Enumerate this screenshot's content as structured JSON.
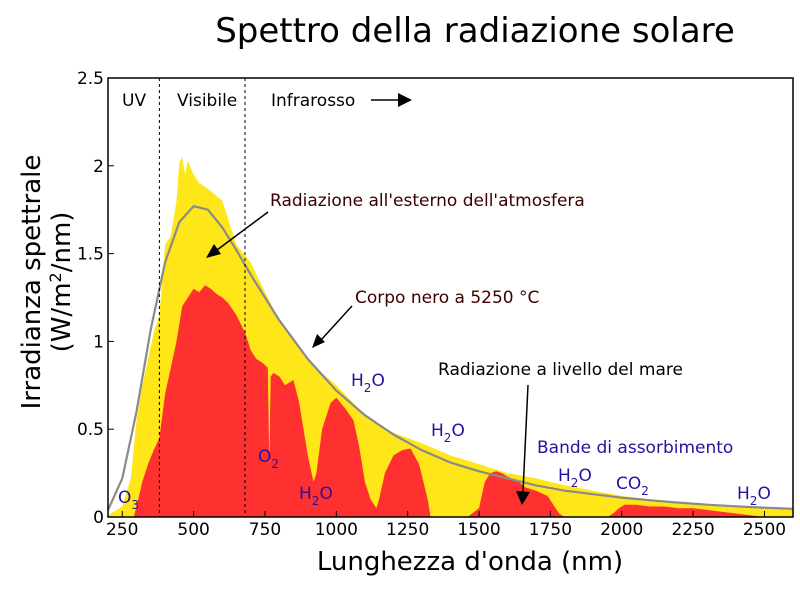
{
  "chart_data": {
    "type": "area",
    "title": "Spettro della radiazione solare",
    "xlabel": "Lunghezza d'onda (nm)",
    "ylabel_line1": "Irradianza spettrale",
    "ylabel_line2_prefix": "(W/m",
    "ylabel_line2_sup": "2",
    "ylabel_line2_suffix": "/nm)",
    "xlim": [
      200,
      2600
    ],
    "ylim": [
      0,
      2.5
    ],
    "x_ticks": [
      250,
      500,
      750,
      1000,
      1250,
      1500,
      1750,
      2000,
      2250,
      2500
    ],
    "y_ticks": [
      0,
      0.5,
      1,
      1.5,
      2,
      2.5
    ],
    "y_tick_labels": [
      "0",
      "0.5",
      "1",
      "1.5",
      "2",
      "2.5"
    ],
    "regions": {
      "uv_label": "UV",
      "visible_label": "Visibile",
      "infrared_label": "Infrarosso",
      "boundaries_nm": [
        380,
        680
      ]
    },
    "annotations": {
      "outside_atmosphere": "Radiazione all'esterno dell'atmosfera",
      "blackbody": "Corpo nero a 5250 °C",
      "sea_level": "Radiazione a livello del mare",
      "absorption_bands": "Bande di assorbimento"
    },
    "colors": {
      "outside_atmosphere": "#ffe619",
      "sea_level": "#ff3030",
      "blackbody": "#8a8a8a",
      "absorption_label": "#2b0fa0"
    },
    "absorption_bands": [
      {
        "main": "O",
        "sub": "3",
        "tail": ""
      },
      {
        "main": "O",
        "sub": "2",
        "tail": ""
      },
      {
        "main": "H",
        "sub": "2",
        "tail": "O"
      },
      {
        "main": "H",
        "sub": "2",
        "tail": "O"
      },
      {
        "main": "H",
        "sub": "2",
        "tail": "O"
      },
      {
        "main": "H",
        "sub": "2",
        "tail": "O"
      },
      {
        "main": "CO",
        "sub": "2",
        "tail": ""
      },
      {
        "main": "H",
        "sub": "2",
        "tail": "O"
      }
    ],
    "series": [
      {
        "name": "Radiazione all'esterno dell'atmosfera",
        "x": [
          200,
          250,
          280,
          300,
          320,
          340,
          360,
          380,
          400,
          420,
          440,
          450,
          460,
          470,
          480,
          500,
          520,
          550,
          600,
          650,
          700,
          750,
          800,
          850,
          900,
          950,
          1000,
          1100,
          1200,
          1300,
          1400,
          1500,
          1600,
          1700,
          1800,
          1900,
          2000,
          2100,
          2200,
          2300,
          2400,
          2500,
          2600
        ],
        "y": [
          0.01,
          0.06,
          0.22,
          0.55,
          0.75,
          0.9,
          1.05,
          1.15,
          1.55,
          1.6,
          1.8,
          2.02,
          2.05,
          1.95,
          2.03,
          1.95,
          1.9,
          1.87,
          1.8,
          1.55,
          1.45,
          1.28,
          1.12,
          1.0,
          0.9,
          0.82,
          0.75,
          0.58,
          0.48,
          0.42,
          0.35,
          0.3,
          0.25,
          0.22,
          0.18,
          0.15,
          0.12,
          0.1,
          0.08,
          0.07,
          0.06,
          0.05,
          0.04
        ]
      },
      {
        "name": "Radiazione a livello del mare",
        "x": [
          280,
          290,
          300,
          320,
          340,
          360,
          380,
          400,
          420,
          440,
          460,
          480,
          500,
          520,
          540,
          560,
          580,
          600,
          620,
          650,
          680,
          690,
          700,
          720,
          740,
          760,
          765,
          770,
          780,
          800,
          820,
          850,
          870,
          900,
          920,
          930,
          950,
          970,
          980,
          1000,
          1030,
          1060,
          1080,
          1100,
          1120,
          1140,
          1150,
          1170,
          1200,
          1230,
          1260,
          1290,
          1320,
          1330,
          1340,
          1400,
          1440,
          1460,
          1500,
          1520,
          1540,
          1560,
          1580,
          1600,
          1640,
          1660,
          1700,
          1740,
          1760,
          1780,
          1800,
          1900,
          1950,
          1970,
          1990,
          2010,
          2050,
          2100,
          2150,
          2200,
          2250,
          2300,
          2350,
          2400,
          2450,
          2500
        ],
        "y": [
          0.0,
          0.0,
          0.06,
          0.2,
          0.3,
          0.38,
          0.45,
          0.7,
          0.85,
          1.0,
          1.2,
          1.25,
          1.3,
          1.28,
          1.32,
          1.3,
          1.27,
          1.25,
          1.22,
          1.15,
          1.05,
          1.0,
          0.95,
          0.9,
          0.88,
          0.85,
          0.3,
          0.8,
          0.82,
          0.8,
          0.75,
          0.78,
          0.65,
          0.35,
          0.2,
          0.25,
          0.5,
          0.6,
          0.65,
          0.68,
          0.62,
          0.55,
          0.4,
          0.2,
          0.1,
          0.05,
          0.1,
          0.25,
          0.35,
          0.38,
          0.39,
          0.3,
          0.1,
          0.0,
          0.0,
          0.0,
          0.0,
          0.0,
          0.05,
          0.2,
          0.25,
          0.26,
          0.25,
          0.23,
          0.2,
          0.17,
          0.15,
          0.12,
          0.07,
          0.02,
          0.0,
          0.0,
          0.0,
          0.02,
          0.05,
          0.07,
          0.07,
          0.06,
          0.06,
          0.05,
          0.05,
          0.04,
          0.03,
          0.02,
          0.01,
          0.0
        ]
      },
      {
        "name": "Corpo nero a 5250 °C",
        "x": [
          200,
          250,
          300,
          350,
          400,
          450,
          500,
          550,
          600,
          650,
          700,
          800,
          900,
          1000,
          1100,
          1200,
          1300,
          1400,
          1500,
          1600,
          1700,
          1800,
          1900,
          2000,
          2100,
          2200,
          2300,
          2400,
          2500,
          2600
        ],
        "y": [
          0.04,
          0.22,
          0.6,
          1.07,
          1.45,
          1.68,
          1.77,
          1.75,
          1.65,
          1.52,
          1.38,
          1.12,
          0.9,
          0.72,
          0.58,
          0.47,
          0.38,
          0.31,
          0.26,
          0.22,
          0.18,
          0.15,
          0.13,
          0.11,
          0.095,
          0.082,
          0.07,
          0.061,
          0.053,
          0.046
        ]
      }
    ],
    "grid": false,
    "legend": "none"
  }
}
